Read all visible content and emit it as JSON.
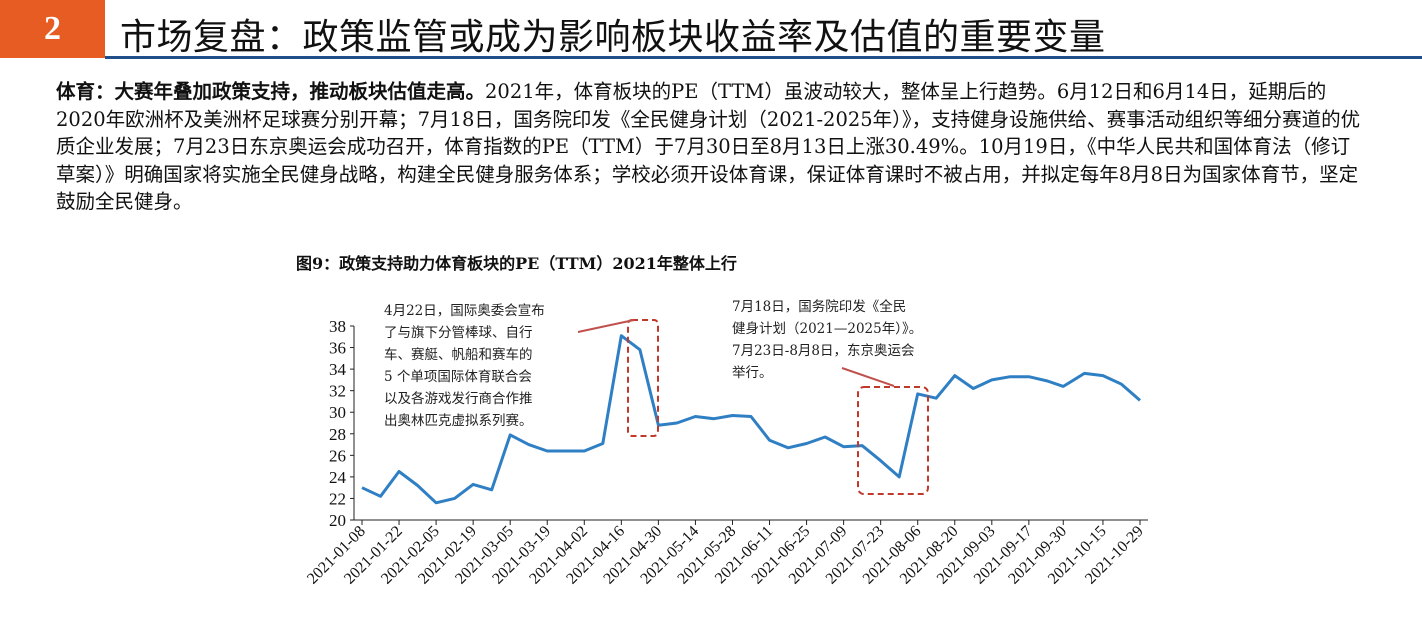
{
  "header": {
    "section_number": "2",
    "title": "市场复盘：政策监管或成为影响板块收益率及估值的重要变量"
  },
  "paragraph": {
    "lead": "体育：大赛年叠加政策支持，推动板块估值走高。",
    "body": "2021年，体育板块的PE（TTM）虽波动较大，整体呈上行趋势。6月12日和6月14日，延期后的2020年欧洲杯及美洲杯足球赛分别开幕；7月18日，国务院印发《全民健身计划（2021-2025年）》，支持健身设施供给、赛事活动组织等细分赛道的优质企业发展；7月23日东京奥运会成功召开，体育指数的PE（TTM）于7月30日至8月13日上涨30.49%。10月19日，《中华人民共和国体育法（修订草案）》明确国家将实施全民健身战略，构建全民健身服务体系；学校必须开设体育课，保证体育课时不被占用，并拟定每年8月8日为国家体育节，坚定鼓励全民健身。"
  },
  "figure": {
    "title": "图9：政策支持助力体育板块的PE（TTM）2021年整体上行",
    "annotation_1": "4月22日，国际奥委会宣布\n了与旗下分管棒球、自行\n车、赛艇、帆船和赛车的\n5 个单项国际体育联合会\n以及各游戏发行商合作推\n出奥林匹克虚拟系列赛。",
    "annotation_2": "7月18日，国务院印发《全民\n健身计划（2021—2025年）》。\n7月23日-8月8日，东京奥运会\n举行。"
  },
  "colors": {
    "header_accent": "#e65c22",
    "header_rule": "#1f4e8c",
    "line": "#2f7fc4",
    "highlight_box": "#c0392b"
  },
  "chart_data": {
    "type": "line",
    "ylim": [
      20,
      38
    ],
    "yticks": [
      20,
      22,
      24,
      26,
      28,
      30,
      32,
      34,
      36,
      38
    ],
    "xtick_labels": [
      "2021-01-08",
      "2021-01-22",
      "2021-02-05",
      "2021-02-19",
      "2021-03-05",
      "2021-03-19",
      "2021-04-02",
      "2021-04-16",
      "2021-04-30",
      "2021-05-14",
      "2021-05-28",
      "2021-06-11",
      "2021-06-25",
      "2021-07-09",
      "2021-07-23",
      "2021-08-06",
      "2021-08-20",
      "2021-09-03",
      "2021-09-17",
      "2021-09-30",
      "2021-10-15",
      "2021-10-29"
    ],
    "x": [
      "2021-01-08",
      "2021-01-15",
      "2021-01-22",
      "2021-01-29",
      "2021-02-05",
      "2021-02-12",
      "2021-02-19",
      "2021-02-26",
      "2021-03-05",
      "2021-03-12",
      "2021-03-19",
      "2021-03-26",
      "2021-04-02",
      "2021-04-09",
      "2021-04-16",
      "2021-04-23",
      "2021-04-30",
      "2021-05-07",
      "2021-05-14",
      "2021-05-21",
      "2021-05-28",
      "2021-06-04",
      "2021-06-11",
      "2021-06-18",
      "2021-06-25",
      "2021-07-02",
      "2021-07-09",
      "2021-07-16",
      "2021-07-23",
      "2021-07-30",
      "2021-08-06",
      "2021-08-13",
      "2021-08-20",
      "2021-08-27",
      "2021-09-03",
      "2021-09-10",
      "2021-09-17",
      "2021-09-24",
      "2021-09-30",
      "2021-10-08",
      "2021-10-15",
      "2021-10-22",
      "2021-10-29"
    ],
    "values": [
      23.0,
      22.2,
      24.5,
      23.2,
      21.6,
      22.0,
      23.3,
      22.8,
      27.9,
      27.0,
      26.4,
      26.4,
      26.4,
      27.1,
      37.1,
      35.8,
      28.8,
      29.0,
      29.6,
      29.4,
      29.7,
      29.6,
      27.4,
      26.7,
      27.1,
      27.7,
      26.8,
      26.9,
      25.5,
      24.0,
      31.7,
      31.3,
      33.4,
      32.2,
      33.0,
      33.3,
      33.3,
      32.9,
      32.4,
      33.6,
      33.4,
      32.6,
      31.1
    ]
  }
}
